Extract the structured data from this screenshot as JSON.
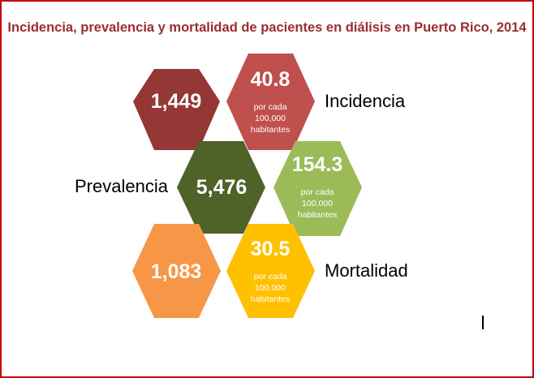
{
  "title": "Incidencia, prevalencia y mortalidad de pacientes en diálisis en Puerto Rico, 2014",
  "labels": {
    "incidencia": "Incidencia",
    "prevalencia": "Prevalencia",
    "mortalidad": "Mortalidad"
  },
  "hexes": {
    "incidencia_count": {
      "value": "1,449",
      "color": "#953735"
    },
    "incidencia_rate": {
      "value": "40.8",
      "line1": "por cada",
      "line2": "100,000",
      "line3": "habitantes",
      "color": "#c0504d"
    },
    "prevalencia_count": {
      "value": "5,476",
      "color": "#4f6228"
    },
    "prevalencia_rate": {
      "value": "154.3",
      "line1": "por cada",
      "line2": "100,000",
      "line3": "habitantes",
      "color": "#9bbb59"
    },
    "mortalidad_count": {
      "value": "1,083",
      "color": "#f79646"
    },
    "mortalidad_rate": {
      "value": "30.5",
      "line1": "por cada",
      "line2": "100,000",
      "line3": "habitantes",
      "color": "#ffc000"
    }
  }
}
